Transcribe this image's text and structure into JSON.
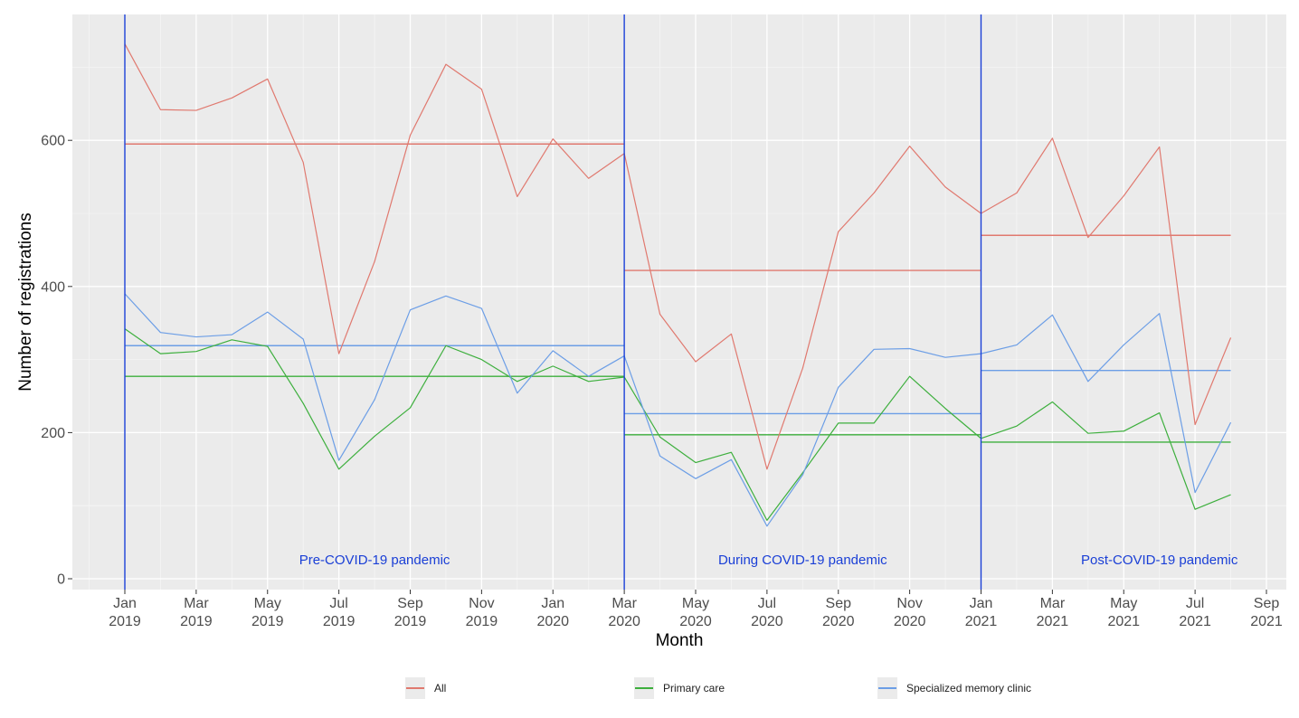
{
  "chart_data": {
    "type": "line",
    "xlabel": "Month",
    "ylabel": "Number of registrations",
    "ylim": [
      -15,
      775
    ],
    "y_ticks": [
      0,
      200,
      400,
      600
    ],
    "x_ticks": [
      {
        "month": 0,
        "line1": "Jan",
        "line2": "2019"
      },
      {
        "month": 2,
        "line1": "Mar",
        "line2": "2019"
      },
      {
        "month": 4,
        "line1": "May",
        "line2": "2019"
      },
      {
        "month": 6,
        "line1": "Jul",
        "line2": "2019"
      },
      {
        "month": 8,
        "line1": "Sep",
        "line2": "2019"
      },
      {
        "month": 10,
        "line1": "Nov",
        "line2": "2019"
      },
      {
        "month": 12,
        "line1": "Jan",
        "line2": "2020"
      },
      {
        "month": 14,
        "line1": "Mar",
        "line2": "2020"
      },
      {
        "month": 16,
        "line1": "May",
        "line2": "2020"
      },
      {
        "month": 18,
        "line1": "Jul",
        "line2": "2020"
      },
      {
        "month": 20,
        "line1": "Sep",
        "line2": "2020"
      },
      {
        "month": 22,
        "line1": "Nov",
        "line2": "2020"
      },
      {
        "month": 24,
        "line1": "Jan",
        "line2": "2021"
      },
      {
        "month": 26,
        "line1": "Mar",
        "line2": "2021"
      },
      {
        "month": 28,
        "line1": "May",
        "line2": "2021"
      },
      {
        "month": 30,
        "line1": "Jul",
        "line2": "2021"
      },
      {
        "month": 32,
        "line1": "Sep",
        "line2": "2021"
      }
    ],
    "months": [
      "Jan 2019",
      "Feb 2019",
      "Mar 2019",
      "Apr 2019",
      "May 2019",
      "Jun 2019",
      "Jul 2019",
      "Aug 2019",
      "Sep 2019",
      "Oct 2019",
      "Nov 2019",
      "Dec 2019",
      "Jan 2020",
      "Feb 2020",
      "Mar 2020",
      "Apr 2020",
      "May 2020",
      "Jun 2020",
      "Jul 2020",
      "Aug 2020",
      "Sep 2020",
      "Oct 2020",
      "Nov 2020",
      "Dec 2020",
      "Jan 2021",
      "Feb 2021",
      "Mar 2021",
      "Apr 2021",
      "May 2021",
      "Jun 2021",
      "Jul 2021",
      "Aug 2021"
    ],
    "series": [
      {
        "name": "All",
        "color": "#e0796f",
        "values": [
          732,
          642,
          641,
          658,
          684,
          570,
          308,
          434,
          607,
          704,
          670,
          523,
          602,
          548,
          582,
          362,
          297,
          335,
          150,
          288,
          475,
          528,
          592,
          536,
          500,
          528,
          603,
          467,
          524,
          591,
          211,
          330
        ],
        "means": [
          {
            "from": "Jan 2019",
            "to": "Mar 2020",
            "value": 595
          },
          {
            "from": "Mar 2020",
            "to": "Jan 2021",
            "value": 422
          },
          {
            "from": "Jan 2021",
            "to": "Aug 2021",
            "value": 470
          }
        ]
      },
      {
        "name": "Primary care",
        "color": "#3daf3d",
        "values": [
          342,
          308,
          311,
          327,
          318,
          240,
          150,
          195,
          234,
          319,
          300,
          270,
          291,
          270,
          276,
          194,
          159,
          173,
          80,
          145,
          213,
          213,
          277,
          233,
          192,
          209,
          242,
          199,
          202,
          227,
          95,
          115
        ],
        "means": [
          {
            "from": "Jan 2019",
            "to": "Mar 2020",
            "value": 277
          },
          {
            "from": "Mar 2020",
            "to": "Jan 2021",
            "value": 197
          },
          {
            "from": "Jan 2021",
            "to": "Aug 2021",
            "value": 187
          }
        ]
      },
      {
        "name": "Specialized memory clinic",
        "color": "#6c9ee6",
        "values": [
          390,
          337,
          331,
          334,
          365,
          328,
          162,
          245,
          368,
          387,
          370,
          254,
          312,
          277,
          305,
          168,
          137,
          163,
          72,
          142,
          262,
          314,
          315,
          303,
          308,
          320,
          361,
          270,
          320,
          363,
          118,
          214
        ],
        "means": [
          {
            "from": "Jan 2019",
            "to": "Mar 2020",
            "value": 319
          },
          {
            "from": "Mar 2020",
            "to": "Jan 2021",
            "value": 226
          },
          {
            "from": "Jan 2021",
            "to": "Aug 2021",
            "value": 285
          }
        ]
      }
    ],
    "vlines": [
      "Jan 2019",
      "Mar 2020",
      "Jan 2021"
    ],
    "vline_color": "#1a3fd6",
    "annotations": [
      {
        "text": "Pre-COVID-19 pandemic",
        "at_month": 7,
        "y": 26
      },
      {
        "text": "During COVID-19 pandemic",
        "at_month": 19,
        "y": 26
      },
      {
        "text": "Post-COVID-19 pandemic",
        "at_month": 29,
        "y": 26
      }
    ],
    "grid": true,
    "legend_position": "bottom"
  }
}
